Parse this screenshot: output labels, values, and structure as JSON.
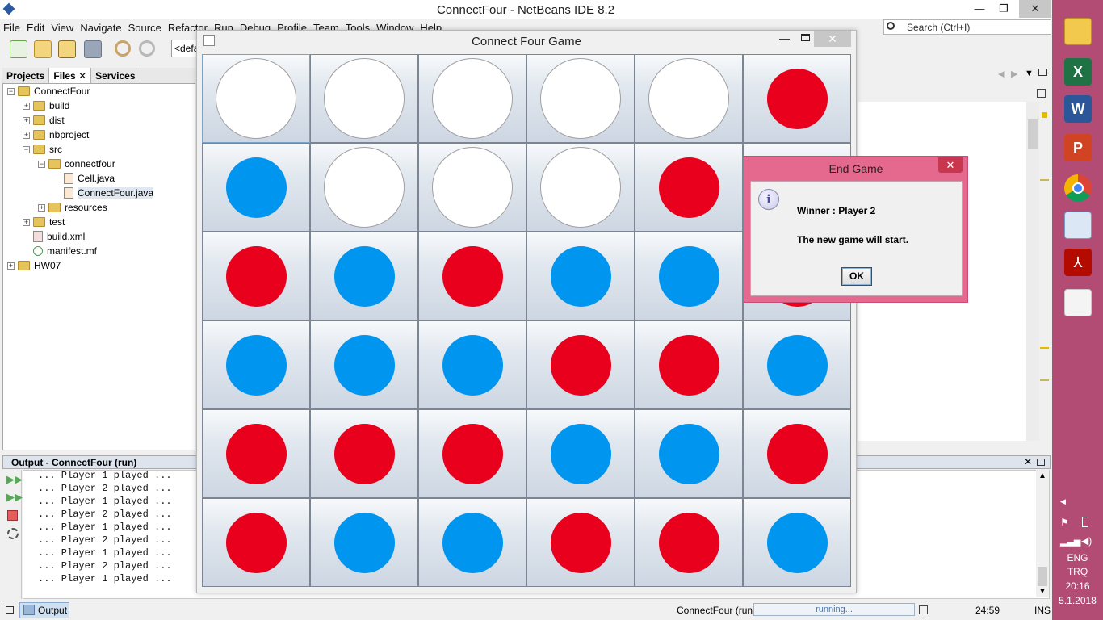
{
  "ide": {
    "title": "ConnectFour - NetBeans IDE 8.2",
    "menu": [
      "File",
      "Edit",
      "View",
      "Navigate",
      "Source",
      "Refactor",
      "Run",
      "Debug",
      "Profile",
      "Team",
      "Tools",
      "Window",
      "Help"
    ],
    "config_value": "<default>",
    "search_placeholder": "Search (Ctrl+I)",
    "minimize": "—",
    "maximize": "❐",
    "close": "✕"
  },
  "projects": {
    "tabs": [
      "Projects",
      "Files",
      "Services"
    ],
    "tree": [
      {
        "label": "ConnectFour",
        "type": "folder",
        "expanded": true
      },
      {
        "label": "build",
        "type": "folder",
        "expanded": false
      },
      {
        "label": "dist",
        "type": "folder",
        "expanded": false
      },
      {
        "label": "nbproject",
        "type": "folder",
        "expanded": false
      },
      {
        "label": "src",
        "type": "folder",
        "expanded": true
      },
      {
        "label": "connectfour",
        "type": "folder",
        "expanded": true
      },
      {
        "label": "Cell.java",
        "type": "java"
      },
      {
        "label": "ConnectFour.java",
        "type": "java"
      },
      {
        "label": "resources",
        "type": "folder",
        "expanded": false
      },
      {
        "label": "test",
        "type": "folder",
        "expanded": false
      },
      {
        "label": "build.xml",
        "type": "xml"
      },
      {
        "label": "manifest.mf",
        "type": "mf"
      },
      {
        "label": "HW07",
        "type": "folder",
        "expanded": false
      }
    ]
  },
  "output": {
    "title": "Output - ConnectFour (run)",
    "lines": [
      "... Player 1 played ...",
      "... Player 2 played ...",
      "... Player 1 played ...",
      "... Player 2 played ...",
      "... Player 1 played ...",
      "... Player 2 played ...",
      "... Player 1 played ...",
      "... Player 2 played ...",
      "... Player 1 played ..."
    ]
  },
  "status": {
    "output_tab": "Output",
    "run_label": "ConnectFour (run)",
    "progress_text": "running...",
    "position": "24:59",
    "mode": "INS"
  },
  "game": {
    "title": "Connect Four Game",
    "board": [
      [
        "white",
        "white",
        "white",
        "white",
        "white",
        "red"
      ],
      [
        "blue",
        "white",
        "white",
        "white",
        "red",
        "red"
      ],
      [
        "red",
        "blue",
        "red",
        "blue",
        "blue",
        "red"
      ],
      [
        "blue",
        "blue",
        "blue",
        "red",
        "red",
        "blue"
      ],
      [
        "red",
        "red",
        "red",
        "blue",
        "blue",
        "red"
      ],
      [
        "red",
        "blue",
        "blue",
        "red",
        "red",
        "blue"
      ]
    ]
  },
  "dialog": {
    "title": "End Game",
    "line1": "Winner : Player 2",
    "line2": "The new game will start.",
    "ok": "OK",
    "icon": "i"
  },
  "taskbar": {
    "icons": [
      "file-explorer",
      "excel",
      "word",
      "powerpoint",
      "chrome",
      "virtualbox",
      "acrobat",
      "java"
    ],
    "lang": "ENG",
    "layout": "TRQ",
    "time": "20:16",
    "date": "5.1.2018"
  }
}
